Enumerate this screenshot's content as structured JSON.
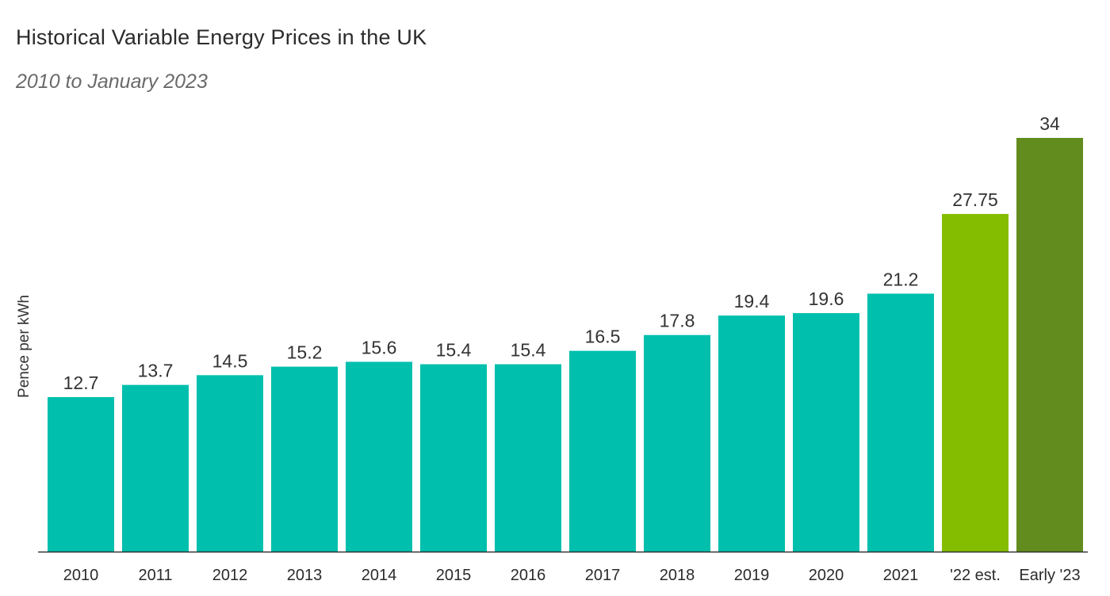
{
  "chart_data": {
    "type": "bar",
    "title": "Historical Variable Energy Prices in the UK",
    "subtitle": "2010 to January 2023",
    "xlabel": "",
    "ylabel": "Pence per kWh",
    "ylim": [
      0,
      34
    ],
    "grid": false,
    "categories": [
      "2010",
      "2011",
      "2012",
      "2013",
      "2014",
      "2015",
      "2016",
      "2017",
      "2018",
      "2019",
      "2020",
      "2021",
      "'22 est.",
      "Early '23"
    ],
    "values": [
      12.7,
      13.7,
      14.5,
      15.2,
      15.6,
      15.4,
      15.4,
      16.5,
      17.8,
      19.4,
      19.6,
      21.2,
      27.75,
      34
    ],
    "value_labels": [
      "12.7",
      "13.7",
      "14.5",
      "15.2",
      "15.6",
      "15.4",
      "15.4",
      "16.5",
      "17.8",
      "19.4",
      "19.6",
      "21.2",
      "27.75",
      "34"
    ],
    "bar_colors": [
      "#00bfad",
      "#00bfad",
      "#00bfad",
      "#00bfad",
      "#00bfad",
      "#00bfad",
      "#00bfad",
      "#00bfad",
      "#00bfad",
      "#00bfad",
      "#00bfad",
      "#00bfad",
      "#84bd00",
      "#628d1e"
    ],
    "axis_color": "#333333"
  }
}
